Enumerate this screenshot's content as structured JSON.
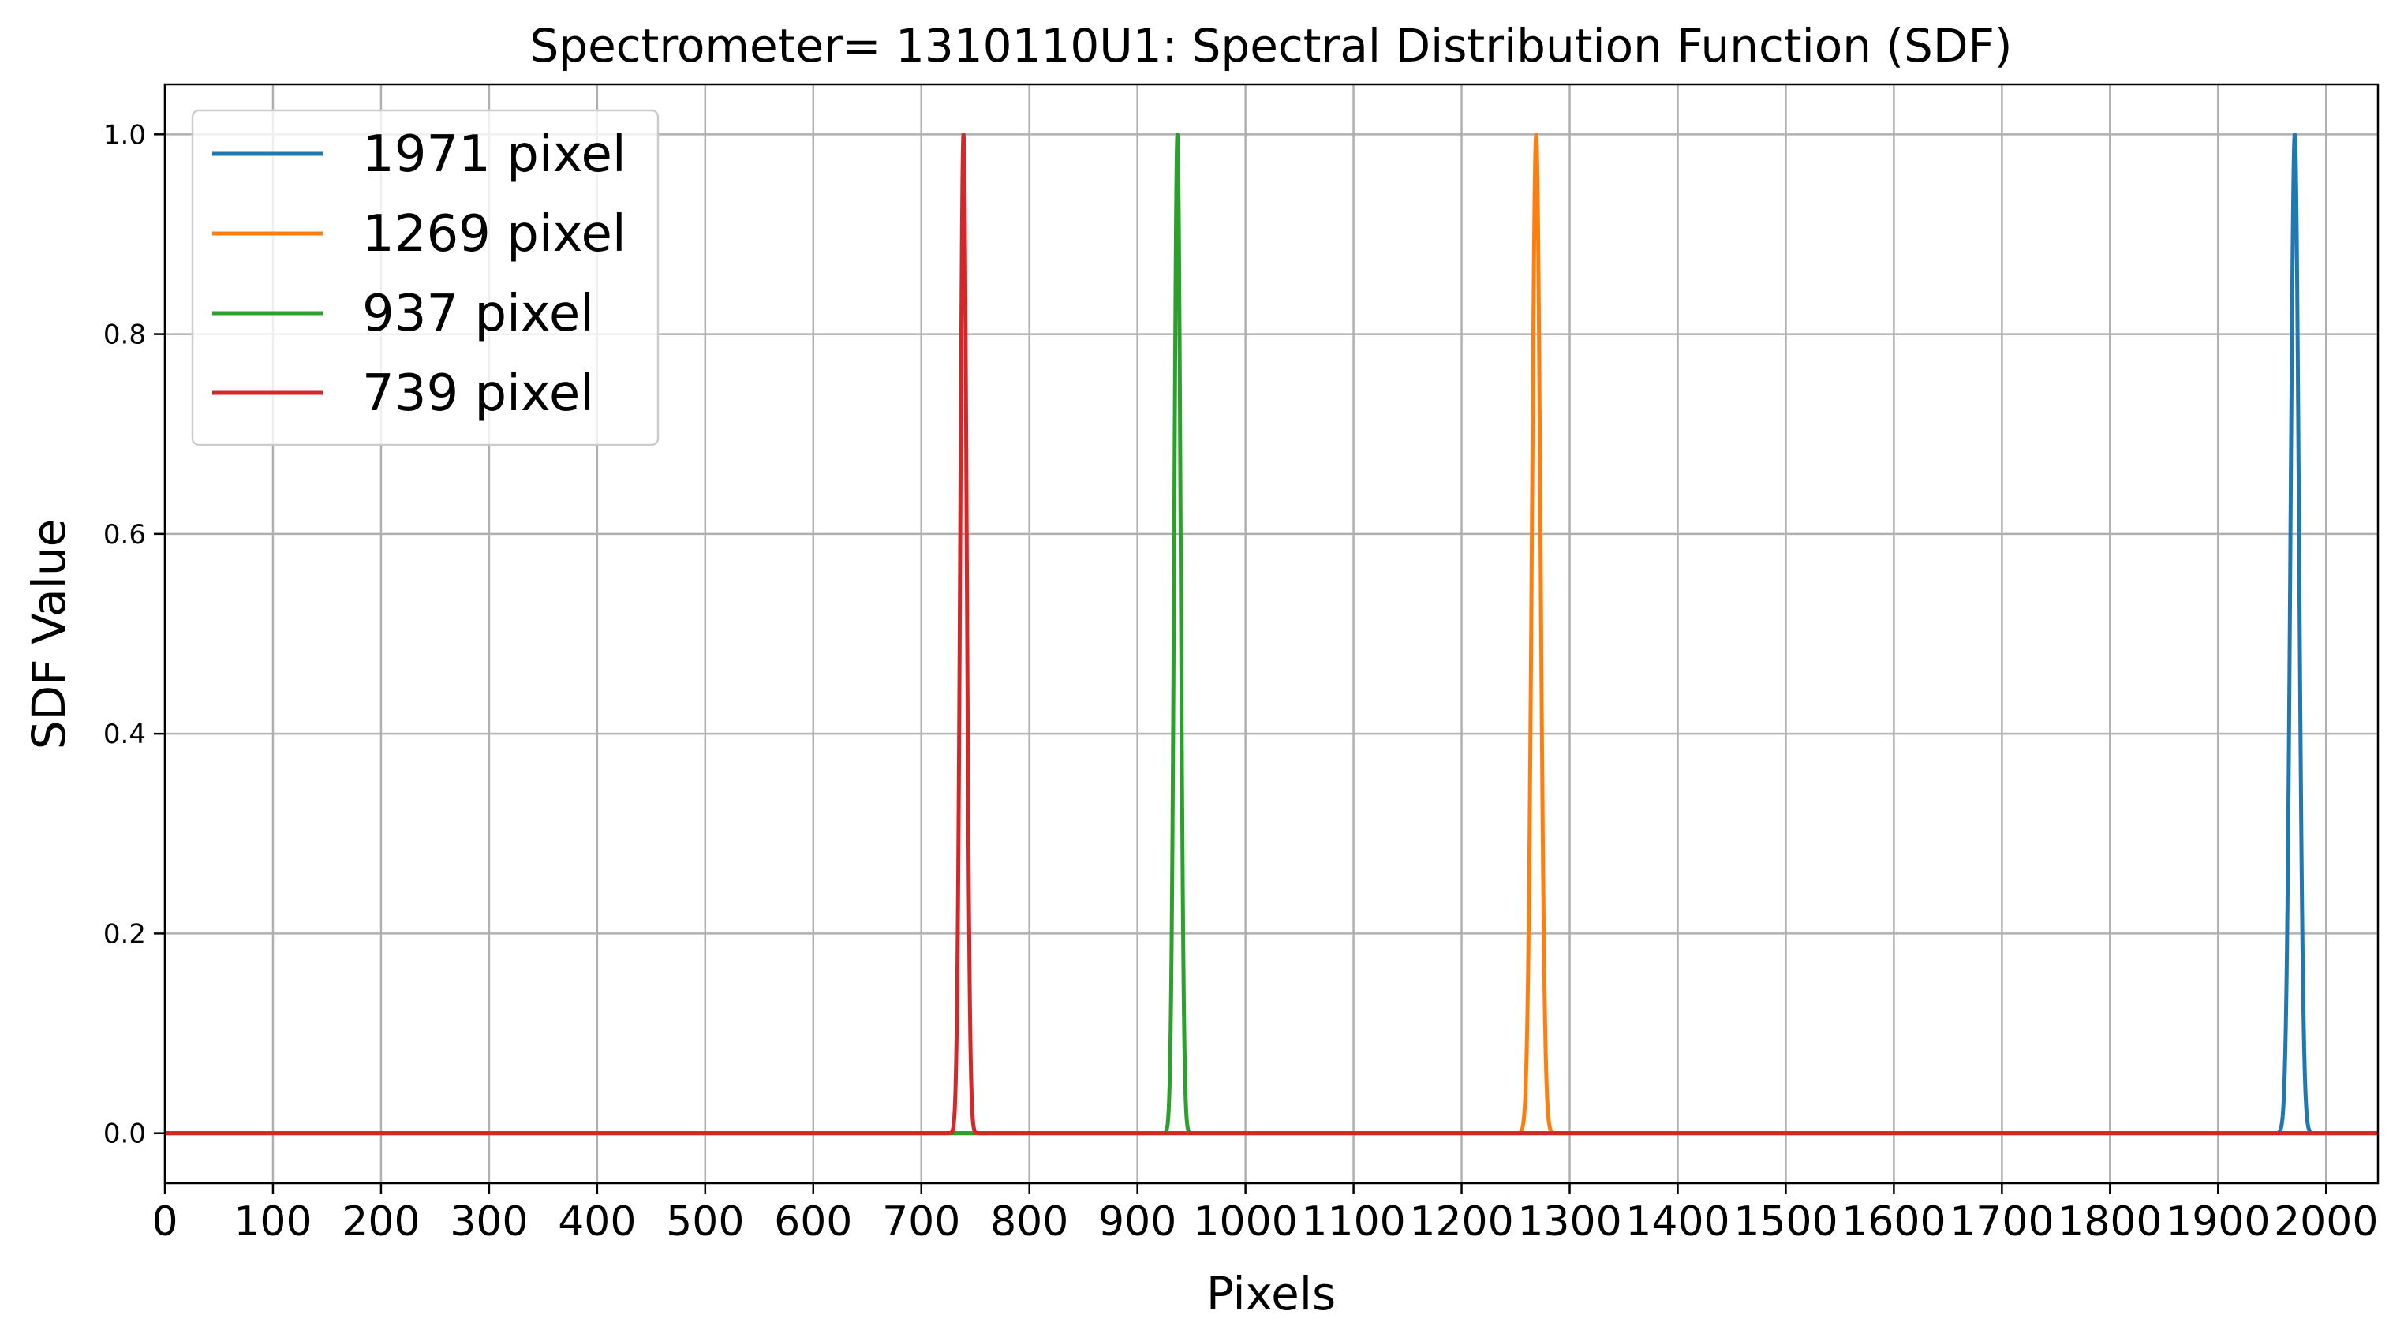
{
  "chart_data": {
    "type": "line",
    "title": "Spectrometer= 1310110U1: Spectral Distribution Function (SDF)",
    "xlabel": "Pixels",
    "ylabel": "SDF Value",
    "xlim": [
      0,
      2048
    ],
    "ylim": [
      -0.05,
      1.05
    ],
    "xticks": [
      0,
      100,
      200,
      300,
      400,
      500,
      600,
      700,
      800,
      900,
      1000,
      1100,
      1200,
      1300,
      1400,
      1500,
      1600,
      1700,
      1800,
      1900,
      2000
    ],
    "xtick_labels": [
      "0",
      "100",
      "200",
      "300",
      "400",
      "500",
      "600",
      "700",
      "800",
      "900",
      "1000",
      "1100",
      "1200",
      "1300",
      "1400",
      "1500",
      "1600",
      "1700",
      "1800",
      "1900",
      "2000"
    ],
    "yticks": [
      0.0,
      0.2,
      0.4,
      0.6,
      0.8,
      1.0
    ],
    "ytick_labels": [
      "0.0",
      "0.2",
      "0.4",
      "0.6",
      "0.8",
      "1.0"
    ],
    "grid": true,
    "legend_position": "top-left",
    "series": [
      {
        "name": "1971 pixel",
        "color": "#1f77b4",
        "peak_x": 1971,
        "peak_y": 1.0,
        "baseline": 0.0,
        "half_width": 4
      },
      {
        "name": "1269 pixel",
        "color": "#ff7f0e",
        "peak_x": 1269,
        "peak_y": 1.0,
        "baseline": 0.0,
        "half_width": 4
      },
      {
        "name": "937 pixel",
        "color": "#2ca02c",
        "peak_x": 937,
        "peak_y": 1.0,
        "baseline": 0.0,
        "half_width": 3
      },
      {
        "name": "739 pixel",
        "color": "#d62728",
        "peak_x": 739,
        "peak_y": 1.0,
        "baseline": 0.0,
        "half_width": 3
      }
    ]
  }
}
